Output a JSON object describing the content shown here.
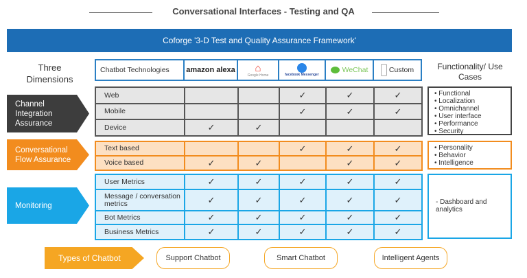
{
  "title": "Conversational Interfaces - Testing and QA",
  "banner": "Coforge '3-D Test and Quality Assurance Framework'",
  "three_dimensions": "Three Dimensions",
  "header": {
    "label": "Chatbot Technologies",
    "technologies": [
      "amazon alexa",
      "Google Home",
      "facebook Messenger",
      "WeChat",
      "Custom"
    ],
    "right": "Functionality/ Use Cases"
  },
  "check": "✓",
  "sections": [
    {
      "name": "Channel Integration Assurance",
      "color": "#3d3d3d",
      "rows": [
        {
          "label": "Web",
          "checks": [
            false,
            false,
            true,
            true,
            true
          ]
        },
        {
          "label": "Mobile",
          "checks": [
            false,
            false,
            true,
            true,
            true
          ]
        },
        {
          "label": "Device",
          "checks": [
            true,
            true,
            false,
            false,
            false
          ]
        }
      ],
      "use_cases": [
        "Functional",
        "Localization",
        "Omnichannel",
        "User interface",
        "Performance",
        "Security"
      ]
    },
    {
      "name": "Conversational Flow Assurance",
      "color": "#f28c1e",
      "rows": [
        {
          "label": "Text based",
          "checks": [
            false,
            false,
            true,
            true,
            true
          ]
        },
        {
          "label": "Voice based",
          "checks": [
            true,
            true,
            false,
            true,
            true
          ]
        }
      ],
      "use_cases": [
        "Personality",
        "Behavior",
        "Intelligence"
      ]
    },
    {
      "name": "Monitoring",
      "color": "#1aa6e6",
      "rows": [
        {
          "label": "User Metrics",
          "checks": [
            true,
            true,
            true,
            true,
            true
          ]
        },
        {
          "label": "Message / conversation metrics",
          "checks": [
            true,
            true,
            true,
            true,
            true
          ]
        },
        {
          "label": "Bot Metrics",
          "checks": [
            true,
            true,
            true,
            true,
            true
          ]
        },
        {
          "label": "Business Metrics",
          "checks": [
            true,
            true,
            true,
            true,
            true
          ]
        }
      ],
      "use_cases": [
        "-  Dashboard and analytics"
      ]
    }
  ],
  "types": {
    "label": "Types of Chatbot",
    "items": [
      "Support Chatbot",
      "Smart Chatbot",
      "Intelligent Agents"
    ]
  }
}
